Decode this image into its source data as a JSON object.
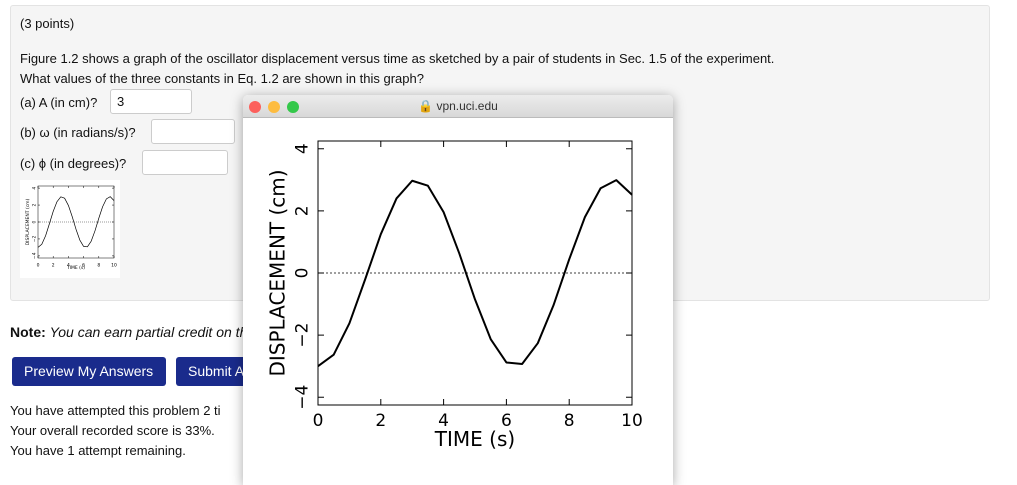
{
  "problem": {
    "points": "(3 points)",
    "text_line1": "Figure 1.2 shows a graph of the oscillator displacement versus time as sketched by a pair of students in Sec. 1.5 of the experiment.",
    "text_line2": "What values of the three constants in Eq. 1.2 are shown in this graph?",
    "fields": [
      {
        "label": "(a) A (in cm)?",
        "value": "3"
      },
      {
        "label": "(b) ω (in radians/s)?",
        "value": ""
      },
      {
        "label": "(c) ϕ (in degrees)?",
        "value": ""
      }
    ],
    "thumbnail": {
      "ylabel": "DISPLACEMENT (cm)",
      "xlabel": "TIME (s)"
    }
  },
  "note": {
    "label": "Note:",
    "text": "You can earn partial credit on th"
  },
  "buttons": [
    "Preview My Answers",
    "Submit Answers"
  ],
  "status": [
    "You have attempted this problem 2 ti",
    "Your overall recorded score is 33%.",
    "You have 1 attempt remaining."
  ],
  "popup": {
    "url": "vpn.uci.edu",
    "chart": {
      "type": "line",
      "xlabel": "TIME (s)",
      "ylabel": "DISPLACEMENT (cm)",
      "x": [
        0,
        0.5,
        1,
        1.5,
        2,
        2.5,
        3,
        3.5,
        4,
        4.5,
        5,
        5.5,
        6,
        6.5,
        7,
        7.5,
        8,
        8.5,
        9,
        9.5,
        10
      ],
      "series": [
        {
          "color": "#000000",
          "values": [
            -3,
            -2.63,
            -1.62,
            -0.21,
            1.25,
            2.4,
            2.97,
            2.81,
            1.96,
            0.63,
            -0.85,
            -2.13,
            -2.88,
            -2.93,
            -2.26,
            -1.04,
            0.44,
            1.8,
            2.73,
            2.99,
            2.52
          ]
        }
      ],
      "xlim": [
        0,
        10
      ],
      "ylim": [
        -4.25,
        4.25
      ],
      "xticks": [
        0,
        2,
        4,
        6,
        8,
        10
      ],
      "yticks": [
        4,
        2,
        0,
        {
          "value": -2,
          "label": "−2"
        },
        {
          "value": -4,
          "label": "−4"
        }
      ],
      "zero_line": true
    }
  }
}
